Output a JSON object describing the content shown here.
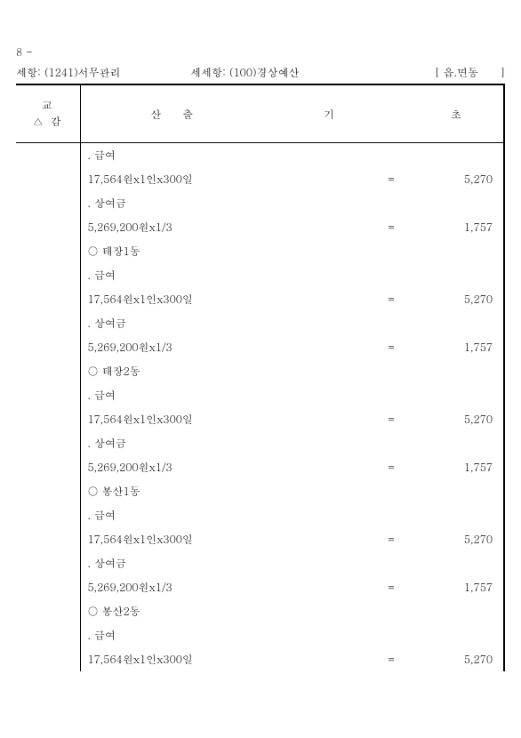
{
  "page_number": "8 -",
  "header": {
    "label1": "세항:",
    "val1": "(1241)서무관리",
    "label2": "세세항:",
    "val2": "(100)경상예산",
    "label3": "[ 읍.면동　　]"
  },
  "columns": {
    "left_line1": "교",
    "left_line2": "△ 감",
    "calc": "산출",
    "gi": "기",
    "cho": "초"
  },
  "rows": [
    {
      "desc": ". 급여",
      "eq": "",
      "val": ""
    },
    {
      "desc": "17,564원x1인x300일",
      "eq": "=",
      "val": "5,270"
    },
    {
      "desc": ". 상여금",
      "eq": "",
      "val": ""
    },
    {
      "desc": "5,269,200원x1/3",
      "eq": "=",
      "val": "1,757"
    },
    {
      "desc": "○ 태장1동",
      "eq": "",
      "val": ""
    },
    {
      "desc": ". 급여",
      "eq": "",
      "val": ""
    },
    {
      "desc": "17,564원x1인x300일",
      "eq": "=",
      "val": "5,270"
    },
    {
      "desc": ". 상여금",
      "eq": "",
      "val": ""
    },
    {
      "desc": "5,269,200원x1/3",
      "eq": "=",
      "val": "1,757"
    },
    {
      "desc": "○ 태장2동",
      "eq": "",
      "val": ""
    },
    {
      "desc": ". 급여",
      "eq": "",
      "val": ""
    },
    {
      "desc": "17,564원x1인x300일",
      "eq": "=",
      "val": "5,270"
    },
    {
      "desc": ". 상여금",
      "eq": "",
      "val": ""
    },
    {
      "desc": "5,269,200원x1/3",
      "eq": "=",
      "val": "1,757"
    },
    {
      "desc": "○ 봉산1동",
      "eq": "",
      "val": ""
    },
    {
      "desc": ". 급여",
      "eq": "",
      "val": ""
    },
    {
      "desc": "17,564원x1인x300일",
      "eq": "=",
      "val": "5,270"
    },
    {
      "desc": ". 상여금",
      "eq": "",
      "val": ""
    },
    {
      "desc": "5,269,200원x1/3",
      "eq": "=",
      "val": "1,757"
    },
    {
      "desc": "○ 봉산2동",
      "eq": "",
      "val": ""
    },
    {
      "desc": ". 급여",
      "eq": "",
      "val": ""
    },
    {
      "desc": "17,564원x1인x300일",
      "eq": "=",
      "val": "5,270"
    }
  ]
}
